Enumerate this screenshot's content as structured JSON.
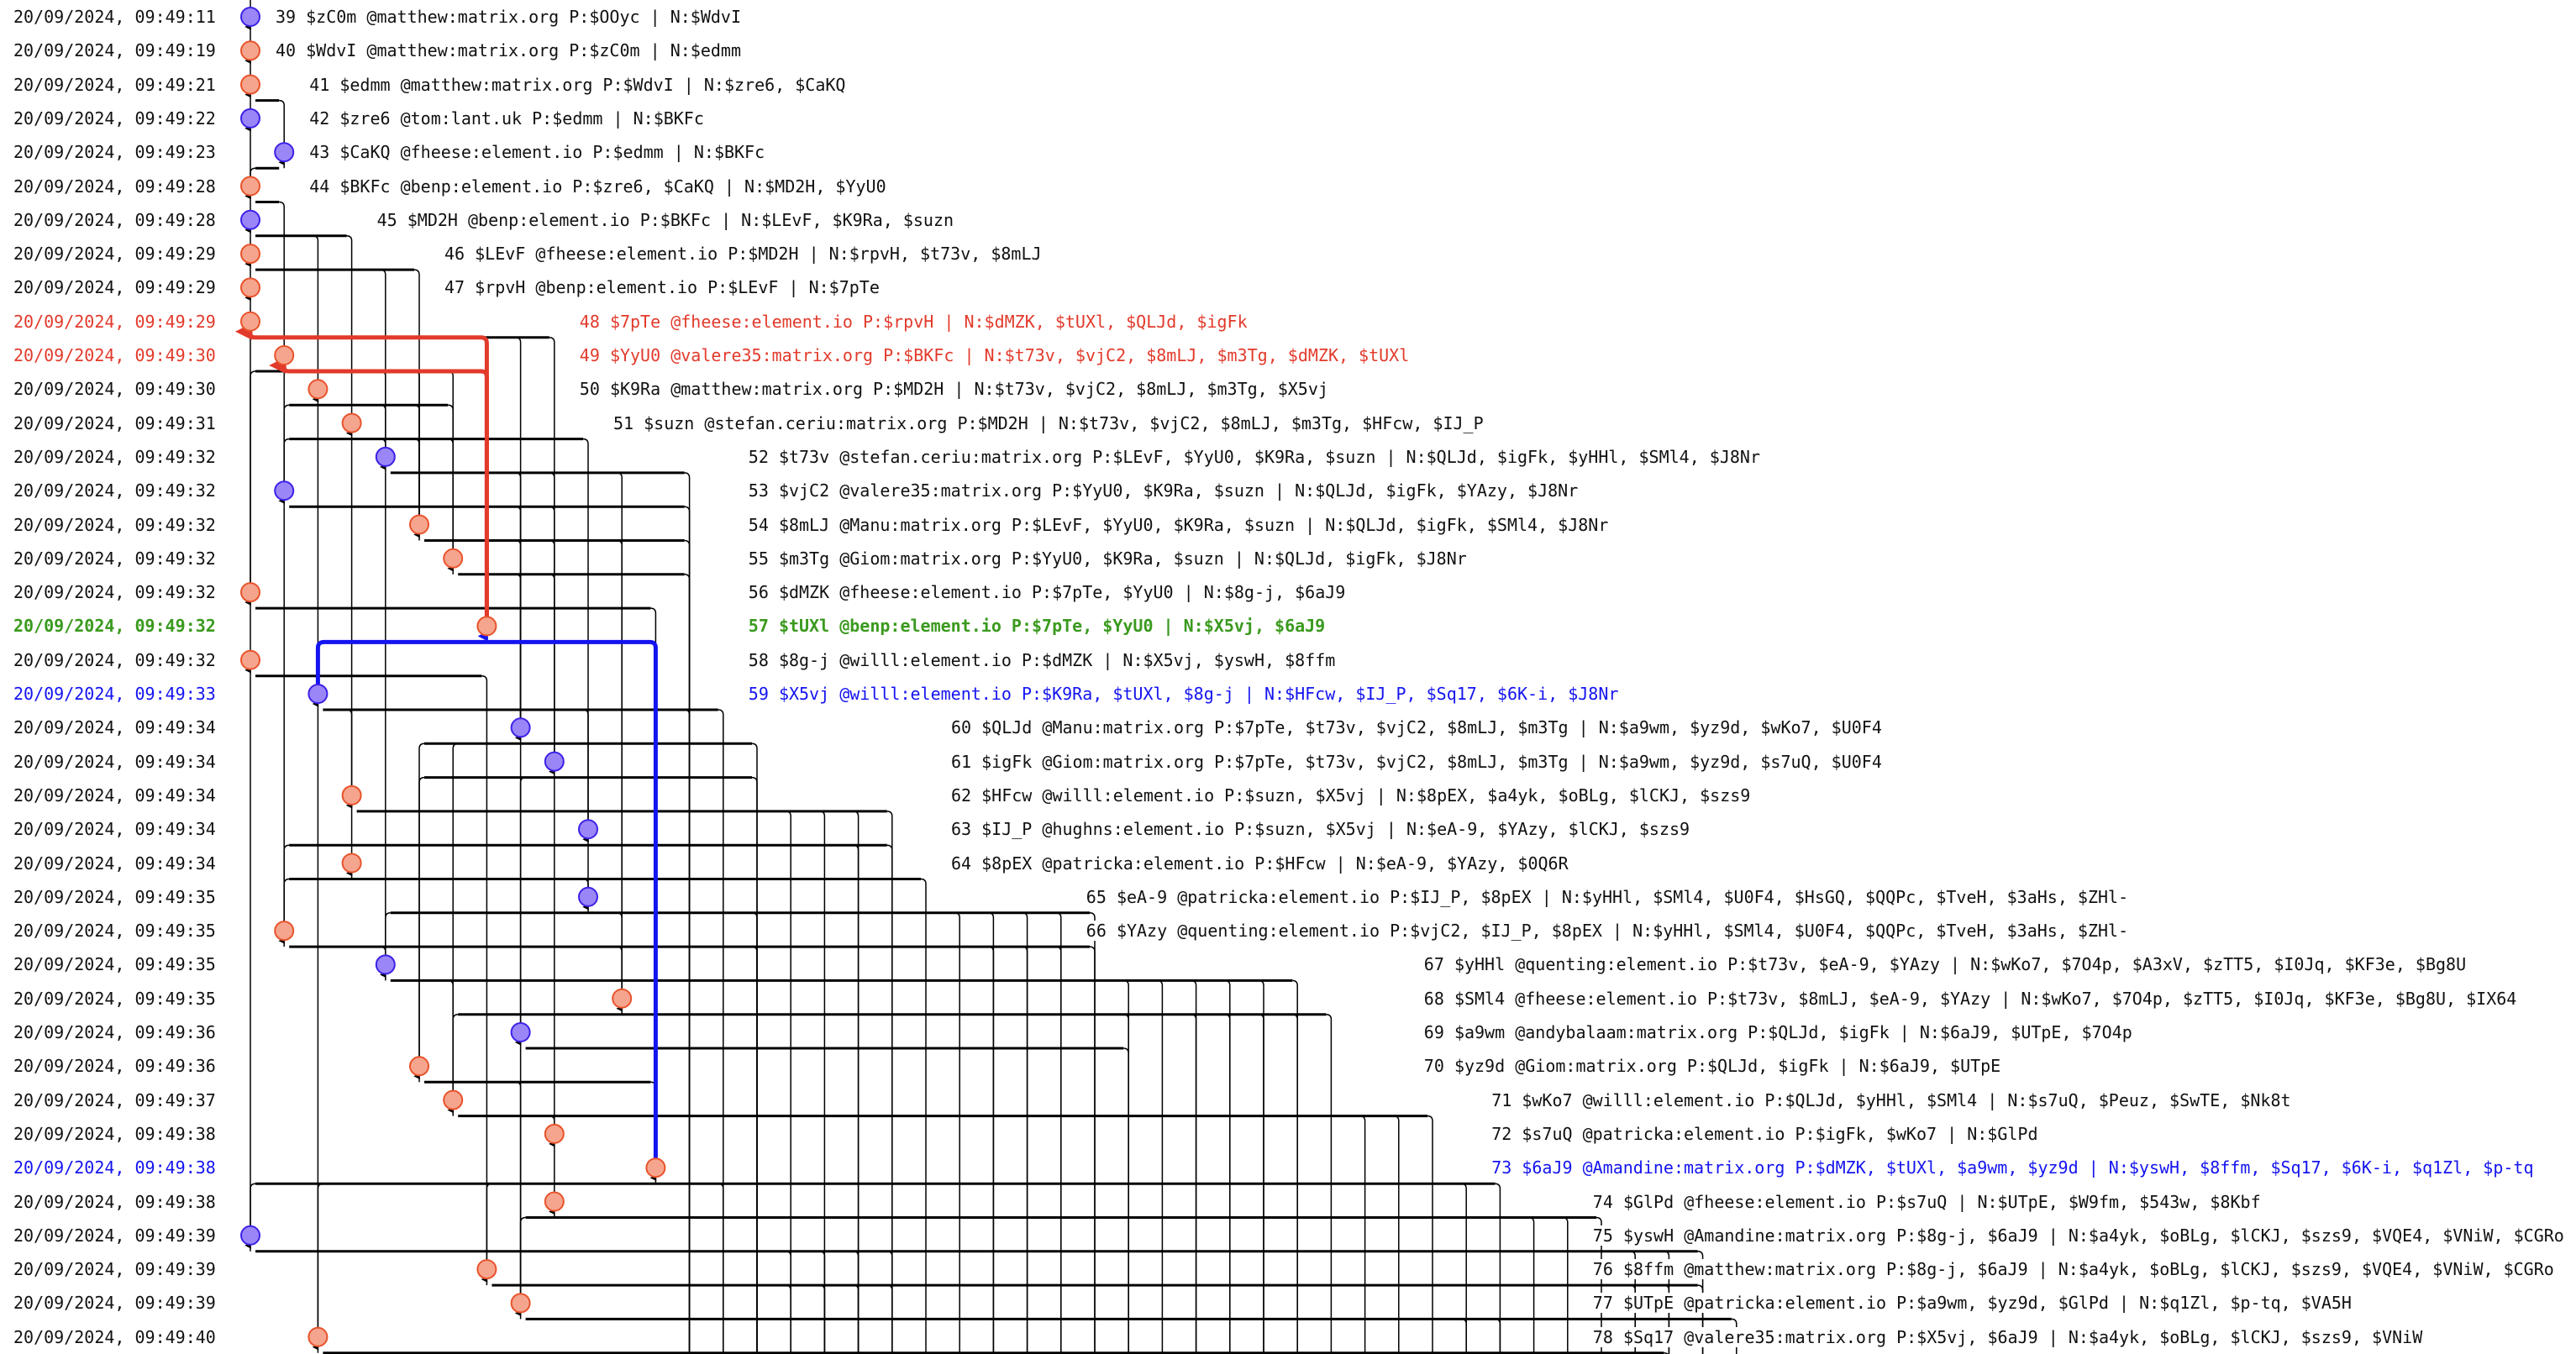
{
  "labels": {
    "parents_prefix": "P:",
    "next_prefix": "N:",
    "separator": "|"
  },
  "colors": {
    "purple_fill": "#9b86f7",
    "purple_stroke": "#3b22e6",
    "orange_fill": "#f5a58e",
    "orange_stroke": "#e8532b",
    "red": "#e23a2b",
    "green": "#3a9a1e",
    "blue": "#1414f0"
  },
  "events": [
    {
      "n": "39",
      "id": "$zC0m",
      "sender": "@matthew:matrix.org",
      "parents": "$OOyc",
      "next": "$WdvI",
      "time": "20/09/2024, 09:49:11",
      "kind": "purple",
      "highlight": ""
    },
    {
      "n": "40",
      "id": "$WdvI",
      "sender": "@matthew:matrix.org",
      "parents": "$zC0m",
      "next": "$edmm",
      "time": "20/09/2024, 09:49:19",
      "kind": "orange",
      "highlight": ""
    },
    {
      "n": "41",
      "id": "$edmm",
      "sender": "@matthew:matrix.org",
      "parents": "$WdvI",
      "next": "$zre6, $CaKQ",
      "time": "20/09/2024, 09:49:21",
      "kind": "orange",
      "highlight": ""
    },
    {
      "n": "42",
      "id": "$zre6",
      "sender": "@tom:lant.uk",
      "parents": "$edmm",
      "next": "$BKFc",
      "time": "20/09/2024, 09:49:22",
      "kind": "purple",
      "highlight": ""
    },
    {
      "n": "43",
      "id": "$CaKQ",
      "sender": "@fheese:element.io",
      "parents": "$edmm",
      "next": "$BKFc",
      "time": "20/09/2024, 09:49:23",
      "kind": "purple",
      "highlight": ""
    },
    {
      "n": "44",
      "id": "$BKFc",
      "sender": "@benp:element.io",
      "parents": "$zre6, $CaKQ",
      "next": "$MD2H, $YyU0",
      "time": "20/09/2024, 09:49:28",
      "kind": "orange",
      "highlight": ""
    },
    {
      "n": "45",
      "id": "$MD2H",
      "sender": "@benp:element.io",
      "parents": "$BKFc",
      "next": "$LEvF, $K9Ra, $suzn",
      "time": "20/09/2024, 09:49:28",
      "kind": "purple",
      "highlight": ""
    },
    {
      "n": "46",
      "id": "$LEvF",
      "sender": "@fheese:element.io",
      "parents": "$MD2H",
      "next": "$rpvH, $t73v, $8mLJ",
      "time": "20/09/2024, 09:49:29",
      "kind": "orange",
      "highlight": ""
    },
    {
      "n": "47",
      "id": "$rpvH",
      "sender": "@benp:element.io",
      "parents": "$LEvF",
      "next": "$7pTe",
      "time": "20/09/2024, 09:49:29",
      "kind": "orange",
      "highlight": ""
    },
    {
      "n": "48",
      "id": "$7pTe",
      "sender": "@fheese:element.io",
      "parents": "$rpvH",
      "next": "$dMZK, $tUXl, $QLJd, $igFk",
      "time": "20/09/2024, 09:49:29",
      "kind": "orange",
      "highlight": "red"
    },
    {
      "n": "49",
      "id": "$YyU0",
      "sender": "@valere35:matrix.org",
      "parents": "$BKFc",
      "next": "$t73v, $vjC2, $8mLJ, $m3Tg, $dMZK, $tUXl",
      "time": "20/09/2024, 09:49:30",
      "kind": "orange",
      "highlight": "red"
    },
    {
      "n": "50",
      "id": "$K9Ra",
      "sender": "@matthew:matrix.org",
      "parents": "$MD2H",
      "next": "$t73v, $vjC2, $8mLJ, $m3Tg, $X5vj",
      "time": "20/09/2024, 09:49:30",
      "kind": "orange",
      "highlight": ""
    },
    {
      "n": "51",
      "id": "$suzn",
      "sender": "@stefan.ceriu:matrix.org",
      "parents": "$MD2H",
      "next": "$t73v, $vjC2, $8mLJ, $m3Tg, $HFcw, $IJ_P",
      "time": "20/09/2024, 09:49:31",
      "kind": "orange",
      "highlight": ""
    },
    {
      "n": "52",
      "id": "$t73v",
      "sender": "@stefan.ceriu:matrix.org",
      "parents": "$LEvF, $YyU0, $K9Ra, $suzn",
      "next": "$QLJd, $igFk, $yHHl, $SMl4, $J8Nr",
      "time": "20/09/2024, 09:49:32",
      "kind": "purple",
      "highlight": ""
    },
    {
      "n": "53",
      "id": "$vjC2",
      "sender": "@valere35:matrix.org",
      "parents": "$YyU0, $K9Ra, $suzn",
      "next": "$QLJd, $igFk, $YAzy, $J8Nr",
      "time": "20/09/2024, 09:49:32",
      "kind": "purple",
      "highlight": ""
    },
    {
      "n": "54",
      "id": "$8mLJ",
      "sender": "@Manu:matrix.org",
      "parents": "$LEvF, $YyU0, $K9Ra, $suzn",
      "next": "$QLJd, $igFk, $SMl4, $J8Nr",
      "time": "20/09/2024, 09:49:32",
      "kind": "orange",
      "highlight": ""
    },
    {
      "n": "55",
      "id": "$m3Tg",
      "sender": "@Giom:matrix.org",
      "parents": "$YyU0, $K9Ra, $suzn",
      "next": "$QLJd, $igFk, $J8Nr",
      "time": "20/09/2024, 09:49:32",
      "kind": "orange",
      "highlight": ""
    },
    {
      "n": "56",
      "id": "$dMZK",
      "sender": "@fheese:element.io",
      "parents": "$7pTe, $YyU0",
      "next": "$8g-j, $6aJ9",
      "time": "20/09/2024, 09:49:32",
      "kind": "orange",
      "highlight": ""
    },
    {
      "n": "57",
      "id": "$tUXl",
      "sender": "@benp:element.io",
      "parents": "$7pTe, $YyU0",
      "next": "$X5vj, $6aJ9",
      "time": "20/09/2024, 09:49:32",
      "kind": "orange",
      "highlight": "green"
    },
    {
      "n": "58",
      "id": "$8g-j",
      "sender": "@willl:element.io",
      "parents": "$dMZK",
      "next": "$X5vj, $yswH, $8ffm",
      "time": "20/09/2024, 09:49:32",
      "kind": "orange",
      "highlight": ""
    },
    {
      "n": "59",
      "id": "$X5vj",
      "sender": "@willl:element.io",
      "parents": "$K9Ra, $tUXl, $8g-j",
      "next": "$HFcw, $IJ_P, $Sq17, $6K-i, $J8Nr",
      "time": "20/09/2024, 09:49:33",
      "kind": "purple",
      "highlight": "blue"
    },
    {
      "n": "60",
      "id": "$QLJd",
      "sender": "@Manu:matrix.org",
      "parents": "$7pTe, $t73v, $vjC2, $8mLJ, $m3Tg",
      "next": "$a9wm, $yz9d, $wKo7, $U0F4",
      "time": "20/09/2024, 09:49:34",
      "kind": "purple",
      "highlight": ""
    },
    {
      "n": "61",
      "id": "$igFk",
      "sender": "@Giom:matrix.org",
      "parents": "$7pTe, $t73v, $vjC2, $8mLJ, $m3Tg",
      "next": "$a9wm, $yz9d, $s7uQ, $U0F4",
      "time": "20/09/2024, 09:49:34",
      "kind": "purple",
      "highlight": ""
    },
    {
      "n": "62",
      "id": "$HFcw",
      "sender": "@willl:element.io",
      "parents": "$suzn, $X5vj",
      "next": "$8pEX, $a4yk, $oBLg, $lCKJ, $szs9",
      "time": "20/09/2024, 09:49:34",
      "kind": "orange",
      "highlight": ""
    },
    {
      "n": "63",
      "id": "$IJ_P",
      "sender": "@hughns:element.io",
      "parents": "$suzn, $X5vj",
      "next": "$eA-9, $YAzy, $lCKJ, $szs9",
      "time": "20/09/2024, 09:49:34",
      "kind": "purple",
      "highlight": ""
    },
    {
      "n": "64",
      "id": "$8pEX",
      "sender": "@patricka:element.io",
      "parents": "$HFcw",
      "next": "$eA-9, $YAzy, $0Q6R",
      "time": "20/09/2024, 09:49:34",
      "kind": "orange",
      "highlight": ""
    },
    {
      "n": "65",
      "id": "$eA-9",
      "sender": "@patricka:element.io",
      "parents": "$IJ_P, $8pEX",
      "next": "$yHHl, $SMl4, $U0F4, $HsGQ, $QQPc, $TveH, $3aHs, $ZHl-",
      "time": "20/09/2024, 09:49:35",
      "kind": "purple",
      "highlight": ""
    },
    {
      "n": "66",
      "id": "$YAzy",
      "sender": "@quenting:element.io",
      "parents": "$vjC2, $IJ_P, $8pEX",
      "next": "$yHHl, $SMl4, $U0F4, $QQPc, $TveH, $3aHs, $ZHl-",
      "time": "20/09/2024, 09:49:35",
      "kind": "orange",
      "highlight": ""
    },
    {
      "n": "67",
      "id": "$yHHl",
      "sender": "@quenting:element.io",
      "parents": "$t73v, $eA-9, $YAzy",
      "next": "$wKo7, $7O4p, $A3xV, $zTT5, $I0Jq, $KF3e, $Bg8U",
      "time": "20/09/2024, 09:49:35",
      "kind": "purple",
      "highlight": ""
    },
    {
      "n": "68",
      "id": "$SMl4",
      "sender": "@fheese:element.io",
      "parents": "$t73v, $8mLJ, $eA-9, $YAzy",
      "next": "$wKo7, $7O4p, $zTT5, $I0Jq, $KF3e, $Bg8U, $IX64",
      "time": "20/09/2024, 09:49:35",
      "kind": "orange",
      "highlight": ""
    },
    {
      "n": "69",
      "id": "$a9wm",
      "sender": "@andybalaam:matrix.org",
      "parents": "$QLJd, $igFk",
      "next": "$6aJ9, $UTpE, $7O4p",
      "time": "20/09/2024, 09:49:36",
      "kind": "purple",
      "highlight": ""
    },
    {
      "n": "70",
      "id": "$yz9d",
      "sender": "@Giom:matrix.org",
      "parents": "$QLJd, $igFk",
      "next": "$6aJ9, $UTpE",
      "time": "20/09/2024, 09:49:36",
      "kind": "orange",
      "highlight": ""
    },
    {
      "n": "71",
      "id": "$wKo7",
      "sender": "@willl:element.io",
      "parents": "$QLJd, $yHHl, $SMl4",
      "next": "$s7uQ, $Peuz, $SwTE, $Nk8t",
      "time": "20/09/2024, 09:49:37",
      "kind": "orange",
      "highlight": ""
    },
    {
      "n": "72",
      "id": "$s7uQ",
      "sender": "@patricka:element.io",
      "parents": "$igFk, $wKo7",
      "next": "$GlPd",
      "time": "20/09/2024, 09:49:38",
      "kind": "orange",
      "highlight": ""
    },
    {
      "n": "73",
      "id": "$6aJ9",
      "sender": "@Amandine:matrix.org",
      "parents": "$dMZK, $tUXl, $a9wm, $yz9d",
      "next": "$yswH, $8ffm, $Sq17, $6K-i, $q1Zl, $p-tq",
      "time": "20/09/2024, 09:49:38",
      "kind": "orange",
      "highlight": "blue"
    },
    {
      "n": "74",
      "id": "$GlPd",
      "sender": "@fheese:element.io",
      "parents": "$s7uQ",
      "next": "$UTpE, $W9fm, $543w, $8Kbf",
      "time": "20/09/2024, 09:49:38",
      "kind": "orange",
      "highlight": ""
    },
    {
      "n": "75",
      "id": "$yswH",
      "sender": "@Amandine:matrix.org",
      "parents": "$8g-j, $6aJ9",
      "next": "$a4yk, $oBLg, $lCKJ, $szs9, $VQE4, $VNiW, $CGRo",
      "time": "20/09/2024, 09:49:39",
      "kind": "purple",
      "highlight": ""
    },
    {
      "n": "76",
      "id": "$8ffm",
      "sender": "@matthew:matrix.org",
      "parents": "$8g-j, $6aJ9",
      "next": "$a4yk, $oBLg, $lCKJ, $szs9, $VQE4, $VNiW, $CGRo",
      "time": "20/09/2024, 09:49:39",
      "kind": "orange",
      "highlight": ""
    },
    {
      "n": "77",
      "id": "$UTpE",
      "sender": "@patricka:element.io",
      "parents": "$a9wm, $yz9d, $GlPd",
      "next": "$q1Zl, $p-tq, $VA5H",
      "time": "20/09/2024, 09:49:39",
      "kind": "orange",
      "highlight": ""
    },
    {
      "n": "78",
      "id": "$Sq17",
      "sender": "@valere35:matrix.org",
      "parents": "$X5vj, $6aJ9",
      "next": "$a4yk, $oBLg, $lCKJ, $szs9, $VNiW",
      "time": "20/09/2024, 09:49:40",
      "kind": "orange",
      "highlight": ""
    }
  ]
}
